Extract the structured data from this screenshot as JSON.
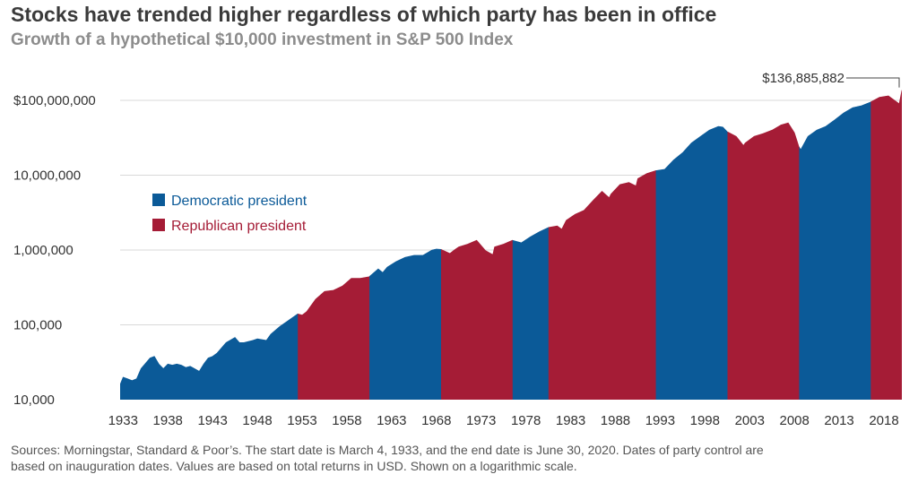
{
  "header": {
    "title": "Stocks have trended higher regardless of which party has been in office",
    "subtitle": "Growth of a hypothetical $10,000 investment in S&P 500 Index"
  },
  "footer": {
    "line1": "Sources: Morningstar, Standard & Poor’s. The start date is March 4, 1933, and the end date is June 30, 2020. Dates of party control are",
    "line2": "based on inauguration dates. Values are based on total returns in USD. Shown on a logarithmic scale."
  },
  "colors": {
    "democratic": "#0b5a98",
    "republican": "#a51c36",
    "gridline": "#d9d9d9"
  },
  "chart_data": {
    "type": "area",
    "title": "Stocks have trended higher regardless of which party has been in office",
    "subtitle": "Growth of a hypothetical $10,000 investment in S&P 500 Index",
    "y_scale": "log",
    "ylim": [
      10000,
      160000000
    ],
    "xlim": [
      1933.17,
      2020.5
    ],
    "y_ticks": [
      10000,
      100000,
      1000000,
      10000000,
      100000000
    ],
    "y_tick_labels": [
      "10,000",
      "100,000",
      "1,000,000",
      "10,000,000",
      "$100,000,000"
    ],
    "x_ticks": [
      1933,
      1938,
      1943,
      1948,
      1953,
      1958,
      1963,
      1968,
      1973,
      1978,
      1983,
      1988,
      1993,
      1998,
      2003,
      2008,
      2013,
      2018
    ],
    "x_tick_labels": [
      "1933",
      "1938",
      "1943",
      "1948",
      "1953",
      "1958",
      "1963",
      "1968",
      "1973",
      "1978",
      "1983",
      "1988",
      "1993",
      "1998",
      "2003",
      "2008",
      "2013",
      "2018"
    ],
    "grid": true,
    "legend": {
      "placement": "upper-left",
      "entries": [
        {
          "label": "Democratic president",
          "party": "democratic"
        },
        {
          "label": "Republican president",
          "party": "republican"
        }
      ]
    },
    "annotation": {
      "label": "$136,885,882",
      "x": 2020.5,
      "y": 136885882
    },
    "terms": [
      {
        "start": 1933.17,
        "end": 1953.05,
        "party": "democratic"
      },
      {
        "start": 1953.05,
        "end": 1961.05,
        "party": "republican"
      },
      {
        "start": 1961.05,
        "end": 1969.05,
        "party": "democratic"
      },
      {
        "start": 1969.05,
        "end": 1977.05,
        "party": "republican"
      },
      {
        "start": 1977.05,
        "end": 1981.05,
        "party": "democratic"
      },
      {
        "start": 1981.05,
        "end": 1993.05,
        "party": "republican"
      },
      {
        "start": 1993.05,
        "end": 2001.05,
        "party": "democratic"
      },
      {
        "start": 2001.05,
        "end": 2009.05,
        "party": "republican"
      },
      {
        "start": 2009.05,
        "end": 2017.05,
        "party": "democratic"
      },
      {
        "start": 2017.05,
        "end": 2020.5,
        "party": "republican"
      }
    ],
    "series": [
      {
        "x": [
          1933.17,
          1933.5,
          1934.0,
          1934.5,
          1935.0,
          1935.5,
          1936.5,
          1937.0,
          1937.5,
          1938.0,
          1938.5,
          1939.0,
          1939.5,
          1940.0,
          1940.5,
          1941.0,
          1942.0,
          1942.5,
          1943.0,
          1943.5,
          1944.0,
          1945.0,
          1946.0,
          1946.5,
          1947.0,
          1948.0,
          1948.5,
          1949.5,
          1950.0,
          1951.0,
          1952.0,
          1953.0,
          1953.5,
          1954.0,
          1955.0,
          1956.0,
          1957.0,
          1958.0,
          1959.0,
          1960.0,
          1961.0,
          1962.0,
          1962.5,
          1963.0,
          1964.0,
          1965.0,
          1966.0,
          1967.0,
          1968.0,
          1968.5,
          1969.0,
          1970.0,
          1970.5,
          1971.0,
          1972.0,
          1973.0,
          1974.0,
          1974.8,
          1975.0,
          1976.0,
          1977.0,
          1978.0,
          1979.0,
          1980.0,
          1981.0,
          1982.0,
          1982.5,
          1983.0,
          1984.0,
          1985.0,
          1986.0,
          1987.0,
          1987.8,
          1988.0,
          1989.0,
          1990.0,
          1990.8,
          1991.0,
          1992.0,
          1993.0,
          1994.0,
          1995.0,
          1996.0,
          1997.0,
          1998.0,
          1999.0,
          2000.0,
          2000.5,
          2001.0,
          2002.0,
          2002.8,
          2003.0,
          2004.0,
          2005.0,
          2006.0,
          2007.0,
          2007.8,
          2008.5,
          2009.0,
          2009.2,
          2010.0,
          2011.0,
          2012.0,
          2013.0,
          2014.0,
          2015.0,
          2016.0,
          2017.0,
          2018.0,
          2019.0,
          2020.2,
          2020.5
        ],
        "y": [
          16000,
          20000,
          19000,
          18000,
          19000,
          26000,
          36000,
          38000,
          30000,
          26000,
          30000,
          29000,
          30000,
          29000,
          27000,
          28000,
          24000,
          30000,
          36000,
          38000,
          42000,
          58000,
          68000,
          58000,
          58000,
          62000,
          65000,
          62000,
          75000,
          95000,
          115000,
          140000,
          135000,
          150000,
          220000,
          280000,
          290000,
          330000,
          420000,
          420000,
          440000,
          560000,
          500000,
          590000,
          700000,
          800000,
          850000,
          850000,
          1000000,
          1030000,
          1020000,
          900000,
          1000000,
          1100000,
          1200000,
          1350000,
          980000,
          870000,
          1100000,
          1200000,
          1350000,
          1250000,
          1500000,
          1750000,
          2000000,
          2100000,
          1900000,
          2500000,
          3000000,
          3400000,
          4600000,
          6100000,
          5000000,
          5600000,
          7500000,
          8000000,
          7200000,
          9000000,
          10500000,
          11500000,
          12000000,
          16000000,
          20000000,
          27000000,
          33000000,
          40000000,
          45000000,
          44000000,
          38000000,
          33000000,
          25000000,
          27000000,
          33000000,
          36000000,
          40000000,
          47000000,
          50000000,
          37000000,
          24000000,
          22000000,
          33000000,
          40000000,
          45000000,
          55000000,
          68000000,
          80000000,
          85000000,
          95000000,
          110000000,
          115000000,
          90000000,
          136885882
        ]
      }
    ]
  }
}
